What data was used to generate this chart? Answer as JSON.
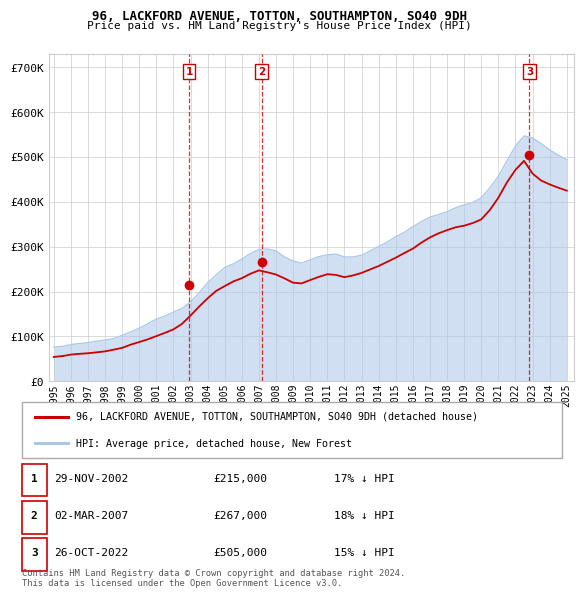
{
  "title_line1": "96, LACKFORD AVENUE, TOTTON, SOUTHAMPTON, SO40 9DH",
  "title_line2": "Price paid vs. HM Land Registry's House Price Index (HPI)",
  "background_color": "#ffffff",
  "grid_color": "#cccccc",
  "hpi_color": "#aac8e8",
  "price_color": "#cc0000",
  "vline_color": "#cc0000",
  "ylim": [
    0,
    730000
  ],
  "yticks": [
    0,
    100000,
    200000,
    300000,
    400000,
    500000,
    600000,
    700000
  ],
  "ytick_labels": [
    "£0",
    "£100K",
    "£200K",
    "£300K",
    "£400K",
    "£500K",
    "£600K",
    "£700K"
  ],
  "sale_dates_num": [
    2002.91,
    2007.16,
    2022.82
  ],
  "sale_prices": [
    215000,
    267000,
    505000
  ],
  "sale_labels": [
    "1",
    "2",
    "3"
  ],
  "legend_property_label": "96, LACKFORD AVENUE, TOTTON, SOUTHAMPTON, SO40 9DH (detached house)",
  "legend_hpi_label": "HPI: Average price, detached house, New Forest",
  "table_rows": [
    {
      "num": "1",
      "date": "29-NOV-2002",
      "price": "£215,000",
      "pct": "17% ↓ HPI"
    },
    {
      "num": "2",
      "date": "02-MAR-2007",
      "price": "£267,000",
      "pct": "18% ↓ HPI"
    },
    {
      "num": "3",
      "date": "26-OCT-2022",
      "price": "£505,000",
      "pct": "15% ↓ HPI"
    }
  ],
  "footer_line1": "Contains HM Land Registry data © Crown copyright and database right 2024.",
  "footer_line2": "This data is licensed under the Open Government Licence v3.0.",
  "hpi_x": [
    1995.0,
    1995.5,
    1996.0,
    1996.5,
    1997.0,
    1997.5,
    1998.0,
    1998.5,
    1999.0,
    1999.5,
    2000.0,
    2000.5,
    2001.0,
    2001.5,
    2002.0,
    2002.5,
    2003.0,
    2003.5,
    2004.0,
    2004.5,
    2005.0,
    2005.5,
    2006.0,
    2006.5,
    2007.0,
    2007.5,
    2008.0,
    2008.5,
    2009.0,
    2009.5,
    2010.0,
    2010.5,
    2011.0,
    2011.5,
    2012.0,
    2012.5,
    2013.0,
    2013.5,
    2014.0,
    2014.5,
    2015.0,
    2015.5,
    2016.0,
    2016.5,
    2017.0,
    2017.5,
    2018.0,
    2018.5,
    2019.0,
    2019.5,
    2020.0,
    2020.5,
    2021.0,
    2021.5,
    2022.0,
    2022.5,
    2023.0,
    2023.5,
    2024.0,
    2024.5,
    2025.0
  ],
  "hpi_y": [
    72000,
    74000,
    78000,
    80000,
    83000,
    86000,
    89000,
    94000,
    100000,
    107000,
    116000,
    126000,
    136000,
    143000,
    152000,
    162000,
    176000,
    196000,
    218000,
    238000,
    252000,
    260000,
    271000,
    281000,
    290000,
    293000,
    289000,
    278000,
    268000,
    264000,
    272000,
    278000,
    284000,
    285000,
    281000,
    282000,
    287000,
    295000,
    303000,
    313000,
    324000,
    334000,
    346000,
    358000,
    370000,
    378000,
    384000,
    390000,
    396000,
    402000,
    410000,
    432000,
    458000,
    492000,
    525000,
    548000,
    545000,
    532000,
    518000,
    505000,
    495000
  ],
  "price_x": [
    1995.0,
    1995.5,
    1996.0,
    1996.5,
    1997.0,
    1997.5,
    1998.0,
    1998.5,
    1999.0,
    1999.5,
    2000.0,
    2000.5,
    2001.0,
    2001.5,
    2002.0,
    2002.5,
    2003.0,
    2003.5,
    2004.0,
    2004.5,
    2005.0,
    2005.5,
    2006.0,
    2006.5,
    2007.0,
    2007.5,
    2008.0,
    2008.5,
    2009.0,
    2009.5,
    2010.0,
    2010.5,
    2011.0,
    2011.5,
    2012.0,
    2012.5,
    2013.0,
    2013.5,
    2014.0,
    2014.5,
    2015.0,
    2015.5,
    2016.0,
    2016.5,
    2017.0,
    2017.5,
    2018.0,
    2018.5,
    2019.0,
    2019.5,
    2020.0,
    2020.5,
    2021.0,
    2021.5,
    2022.0,
    2022.5,
    2023.0,
    2023.5,
    2024.0,
    2024.5,
    2025.0
  ],
  "price_y": [
    57000,
    59000,
    61000,
    63000,
    65000,
    68000,
    71000,
    75000,
    80000,
    86000,
    92000,
    98000,
    104000,
    110000,
    118000,
    130000,
    148000,
    168000,
    188000,
    204000,
    214000,
    224000,
    232000,
    242000,
    250000,
    246000,
    240000,
    230000,
    220000,
    218000,
    225000,
    232000,
    238000,
    237000,
    232000,
    234000,
    239000,
    247000,
    255000,
    265000,
    274000,
    284000,
    295000,
    308000,
    320000,
    328000,
    335000,
    340000,
    344000,
    350000,
    358000,
    378000,
    405000,
    440000,
    468000,
    488000,
    460000,
    445000,
    435000,
    428000,
    422000
  ]
}
